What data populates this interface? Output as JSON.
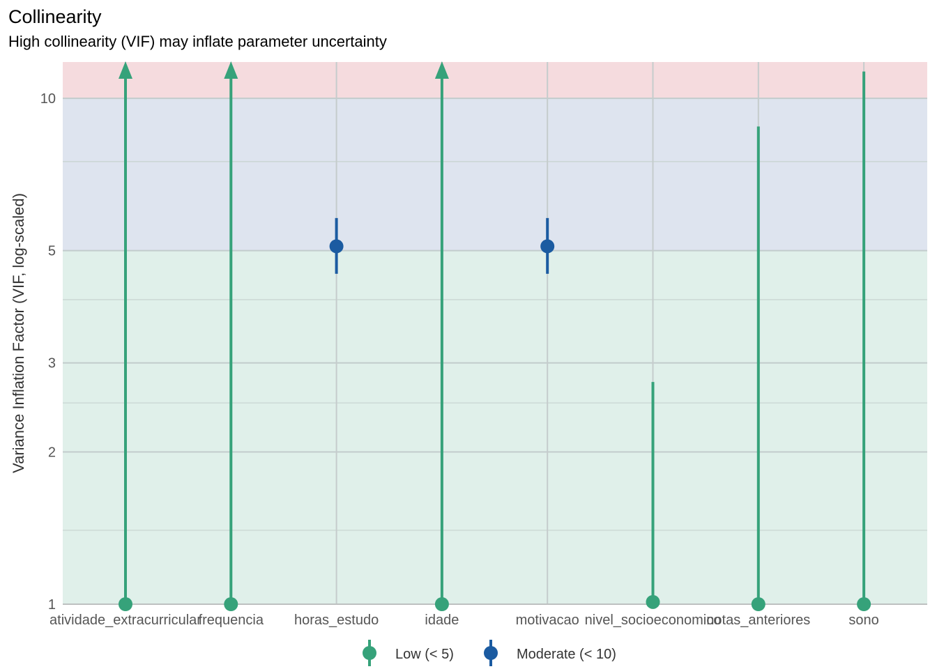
{
  "chart_data": {
    "type": "scatter",
    "title": "Collinearity",
    "subtitle": "High collinearity (VIF) may inflate parameter uncertainty",
    "xlabel": "",
    "ylabel": "Variance Inflation Factor (VIF, log-scaled)",
    "y_scale": "log",
    "ylim": [
      1,
      11.8
    ],
    "y_ticks": [
      1,
      2,
      3,
      5,
      10
    ],
    "y_minor_ticks": [
      1.4,
      2.5,
      4,
      7.5
    ],
    "grid": true,
    "legend_position": "bottom",
    "bands": [
      {
        "from": 1,
        "to": 5,
        "color": "#e0f0ea"
      },
      {
        "from": 5,
        "to": 10,
        "color": "#dee4ef"
      },
      {
        "from": 10,
        "to": 11.8,
        "color": "#f5dbde"
      }
    ],
    "categories": [
      "atividade_extracurricular",
      "frequencia",
      "horas_estudo",
      "idade",
      "motivacao",
      "nivel_socioeconomico",
      "notas_anteriores",
      "sono"
    ],
    "points": [
      {
        "term": "atividade_extracurricular",
        "vif": 1.0,
        "ci_low": 1.0,
        "ci_high": 11.8,
        "arrow": true,
        "group": "Low (< 5)"
      },
      {
        "term": "frequencia",
        "vif": 1.0,
        "ci_low": 1.0,
        "ci_high": 11.8,
        "arrow": true,
        "group": "Low (< 5)"
      },
      {
        "term": "horas_estudo",
        "vif": 5.1,
        "ci_low": 4.5,
        "ci_high": 5.8,
        "arrow": false,
        "group": "Moderate (< 10)"
      },
      {
        "term": "idade",
        "vif": 1.0,
        "ci_low": 1.0,
        "ci_high": 11.8,
        "arrow": true,
        "group": "Low (< 5)"
      },
      {
        "term": "motivacao",
        "vif": 5.1,
        "ci_low": 4.5,
        "ci_high": 5.8,
        "arrow": false,
        "group": "Moderate (< 10)"
      },
      {
        "term": "nivel_socioeconomico",
        "vif": 1.01,
        "ci_low": 1.0,
        "ci_high": 2.75,
        "arrow": false,
        "group": "Low (< 5)"
      },
      {
        "term": "notas_anteriores",
        "vif": 1.0,
        "ci_low": 1.0,
        "ci_high": 8.8,
        "arrow": false,
        "group": "Low (< 5)"
      },
      {
        "term": "sono",
        "vif": 1.0,
        "ci_low": 1.0,
        "ci_high": 11.3,
        "arrow": false,
        "group": "Low (< 5)"
      }
    ],
    "legend": [
      {
        "label": "Low (< 5)",
        "color": "#36a27a"
      },
      {
        "label": "Moderate (< 10)",
        "color": "#1b5ba1"
      }
    ]
  }
}
